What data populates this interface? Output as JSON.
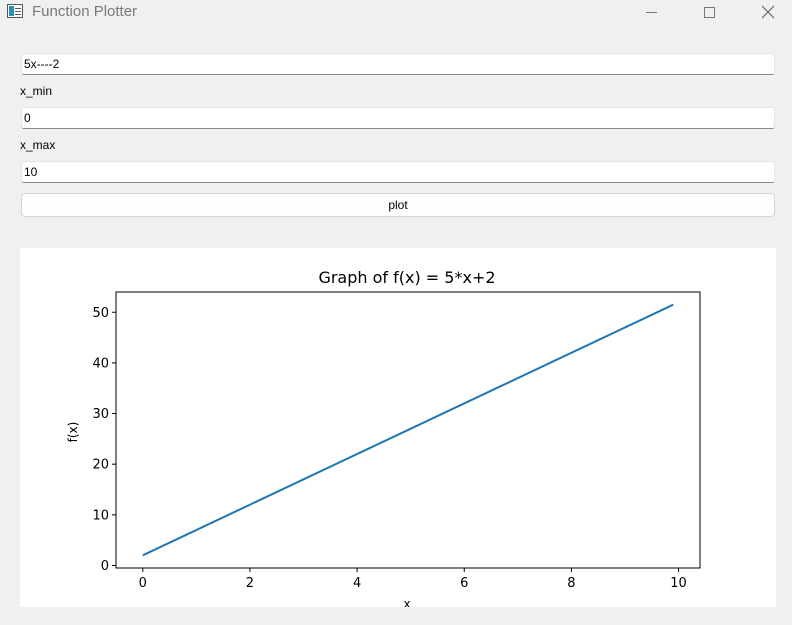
{
  "window": {
    "title": "Function Plotter",
    "controls": [
      "minimize-icon",
      "maximize-icon",
      "close-icon"
    ]
  },
  "form": {
    "function_value": "5x----2",
    "x_min_label": "x_min",
    "x_min_value": "0",
    "x_max_label": "x_max",
    "x_max_value": "10",
    "plot_button_label": "plot"
  },
  "chart_data": {
    "type": "line",
    "title": "Graph of f(x) = 5*x+2",
    "xlabel": "x",
    "ylabel": "f(x)",
    "xlim": [
      -0.5,
      10.4
    ],
    "ylim": [
      -0.5,
      54.0
    ],
    "xticks": [
      0,
      2,
      4,
      6,
      8,
      10
    ],
    "yticks": [
      0,
      10,
      20,
      30,
      40,
      50
    ],
    "grid": false,
    "line_color": "#1f77b4",
    "series": [
      {
        "x": [
          0,
          9.9
        ],
        "y": [
          2,
          51.5
        ]
      }
    ]
  }
}
